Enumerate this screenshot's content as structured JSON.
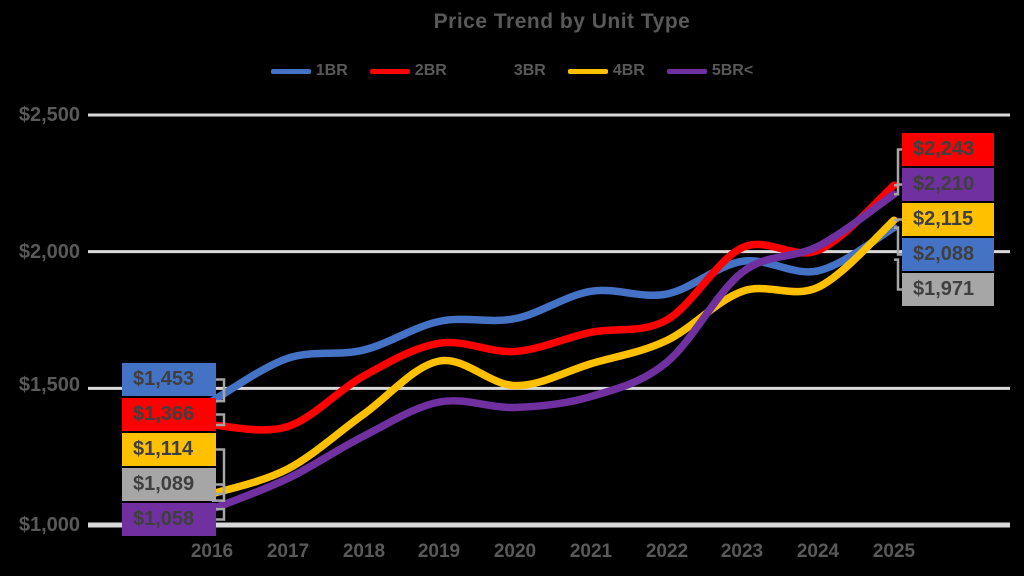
{
  "colors": {
    "background": "#000000",
    "gridline": "#D9D9D9",
    "axis_text": "#595959",
    "callout_text": "#3F3F3F",
    "connector": "#A6A6A6"
  },
  "chart_data": {
    "type": "line",
    "title": "Price Trend by Unit Type",
    "categories": [
      "2016",
      "2017",
      "2018",
      "2019",
      "2020",
      "2021",
      "2022",
      "2023",
      "2024",
      "2025"
    ],
    "series": [
      {
        "name": "1BR",
        "color": "#4472C4",
        "line_visible": true,
        "values": [
          1453,
          1610,
          1640,
          1745,
          1755,
          1855,
          1845,
          1965,
          1930,
          2088
        ]
      },
      {
        "name": "2BR",
        "color": "#FF0000",
        "line_visible": true,
        "values": [
          1366,
          1360,
          1545,
          1665,
          1635,
          1705,
          1750,
          2015,
          2005,
          2243
        ]
      },
      {
        "name": "3BR",
        "color": "#A6A6A6",
        "line_visible": false,
        "values": [
          1089,
          null,
          null,
          null,
          null,
          null,
          null,
          null,
          null,
          1971
        ]
      },
      {
        "name": "4BR",
        "color": "#FFC000",
        "line_visible": true,
        "values": [
          1114,
          1205,
          1405,
          1600,
          1510,
          1590,
          1675,
          1855,
          1870,
          2115
        ]
      },
      {
        "name": "5BR<",
        "color": "#7030A0",
        "line_visible": true,
        "values": [
          1058,
          1170,
          1325,
          1450,
          1430,
          1470,
          1595,
          1925,
          2020,
          2210
        ]
      }
    ],
    "ylim": [
      1000,
      2500
    ],
    "grid": true,
    "legend_position": "top"
  },
  "legend": {
    "items": [
      {
        "label": "1BR",
        "color": "#4472C4"
      },
      {
        "label": "2BR",
        "color": "#FF0000"
      },
      {
        "label": "3BR",
        "color": "#000000"
      },
      {
        "label": "4BR",
        "color": "#FFC000"
      },
      {
        "label": "5BR<",
        "color": "#7030A0"
      }
    ]
  },
  "y_axis": {
    "ticks": [
      {
        "label": "$2,500",
        "value": 2500
      },
      {
        "label": "$2,000",
        "value": 2000
      },
      {
        "label": "$1,500",
        "value": 1500
      },
      {
        "label": "$1,000",
        "value": 1000
      }
    ]
  },
  "callouts": {
    "left": [
      {
        "text": "$1,453",
        "series": "1BR",
        "value": 1453,
        "color": "#4472C4"
      },
      {
        "text": "$1,366",
        "series": "2BR",
        "value": 1366,
        "color": "#FF0000"
      },
      {
        "text": "$1,114",
        "series": "4BR",
        "value": 1114,
        "color": "#FFC000"
      },
      {
        "text": "$1,089",
        "series": "3BR",
        "value": 1089,
        "color": "#A6A6A6"
      },
      {
        "text": "$1,058",
        "series": "5BR<",
        "value": 1058,
        "color": "#7030A0"
      }
    ],
    "right": [
      {
        "text": "$2,243",
        "series": "2BR",
        "value": 2243,
        "color": "#FF0000"
      },
      {
        "text": "$2,210",
        "series": "5BR<",
        "value": 2210,
        "color": "#7030A0"
      },
      {
        "text": "$2,115",
        "series": "4BR",
        "value": 2115,
        "color": "#FFC000"
      },
      {
        "text": "$2,088",
        "series": "1BR",
        "value": 2088,
        "color": "#4472C4"
      },
      {
        "text": "$1,971",
        "series": "3BR",
        "value": 1971,
        "color": "#A6A6A6"
      }
    ]
  }
}
